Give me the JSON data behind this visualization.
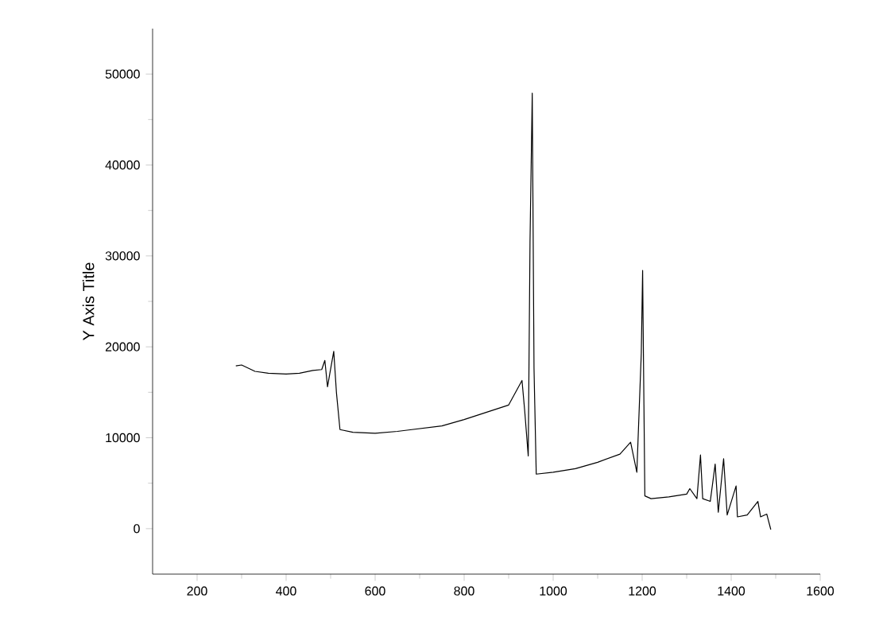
{
  "chart_data": {
    "type": "line",
    "ylabel": "Y Axis Title",
    "x": [
      287,
      300,
      330,
      360,
      400,
      430,
      460,
      480,
      487,
      493,
      498,
      507,
      513,
      521,
      550,
      600,
      650,
      700,
      750,
      800,
      850,
      900,
      930,
      936,
      944,
      948,
      953,
      957,
      962,
      1000,
      1050,
      1100,
      1150,
      1174,
      1188,
      1198,
      1201,
      1202,
      1206,
      1220,
      1260,
      1300,
      1307,
      1323,
      1331,
      1336,
      1353,
      1364,
      1371,
      1383,
      1391,
      1411,
      1414,
      1436,
      1460,
      1466,
      1480,
      1489
    ],
    "series": [
      {
        "color": "#000000",
        "values": [
          17900,
          18000,
          17300,
          17100,
          17000,
          17100,
          17400,
          17500,
          18500,
          15600,
          17000,
          19500,
          15000,
          10900,
          10600,
          10500,
          10700,
          11000,
          11300,
          12000,
          12800,
          13600,
          16300,
          13000,
          8000,
          31600,
          47900,
          17600,
          6000,
          6200,
          6600,
          7300,
          8200,
          9500,
          6200,
          19300,
          28400,
          23200,
          3600,
          3300,
          3500,
          3800,
          4400,
          3300,
          8100,
          3300,
          3000,
          7100,
          1800,
          7700,
          1500,
          4700,
          1300,
          1500,
          3000,
          1300,
          1600,
          -100
        ]
      }
    ],
    "xlim": [
      100,
      1600
    ],
    "ylim": [
      -5000,
      55000
    ],
    "xticks": [
      200,
      400,
      600,
      800,
      1000,
      1200,
      1400,
      1600
    ],
    "yticks": [
      0,
      10000,
      20000,
      30000,
      40000,
      50000
    ],
    "grid": false,
    "marker": "none",
    "line_style": "solid"
  }
}
